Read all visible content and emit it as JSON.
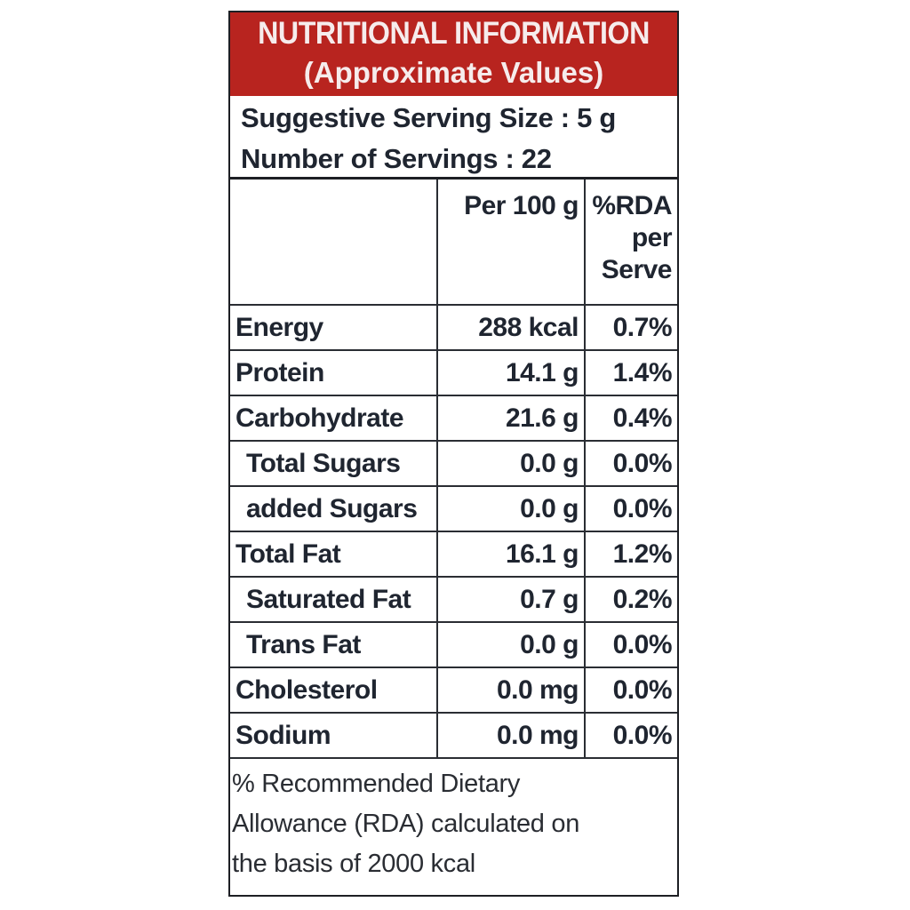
{
  "banner": {
    "title": "NUTRITIONAL INFORMATION",
    "subtitle": "(Approximate Values)",
    "background_color": "#b8241f"
  },
  "serving": {
    "size_text": "Suggestive Serving Size : 5 g",
    "count_text": "Number of Servings : 22"
  },
  "table": {
    "headers": [
      "",
      "Per 100 g",
      "%RDA per Serve"
    ],
    "header_rda_lines": [
      "%RDA",
      "per",
      "Serve"
    ],
    "rows": [
      {
        "nutrient": "Energy",
        "per100g": "288 kcal",
        "rda": "0.7%",
        "indent": false
      },
      {
        "nutrient": "Protein",
        "per100g": "14.1 g",
        "rda": "1.4%",
        "indent": false
      },
      {
        "nutrient": "Carbohydrate",
        "per100g": "21.6 g",
        "rda": "0.4%",
        "indent": false
      },
      {
        "nutrient": "Total Sugars",
        "per100g": "0.0 g",
        "rda": "0.0%",
        "indent": true
      },
      {
        "nutrient": "added Sugars",
        "per100g": "0.0 g",
        "rda": "0.0%",
        "indent": true
      },
      {
        "nutrient": "Total Fat",
        "per100g": "16.1 g",
        "rda": "1.2%",
        "indent": false
      },
      {
        "nutrient": "Saturated Fat",
        "per100g": "0.7 g",
        "rda": "0.2%",
        "indent": true
      },
      {
        "nutrient": "Trans Fat",
        "per100g": "0.0 g",
        "rda": "0.0%",
        "indent": true
      },
      {
        "nutrient": "Cholesterol",
        "per100g": "0.0 mg",
        "rda": "0.0%",
        "indent": false
      },
      {
        "nutrient": "Sodium",
        "per100g": "0.0 mg",
        "rda": "0.0%",
        "indent": false
      }
    ]
  },
  "footer": {
    "lines": [
      "% Recommended Dietary",
      "Allowance (RDA) calculated on",
      "the basis of 2000 kcal"
    ]
  }
}
